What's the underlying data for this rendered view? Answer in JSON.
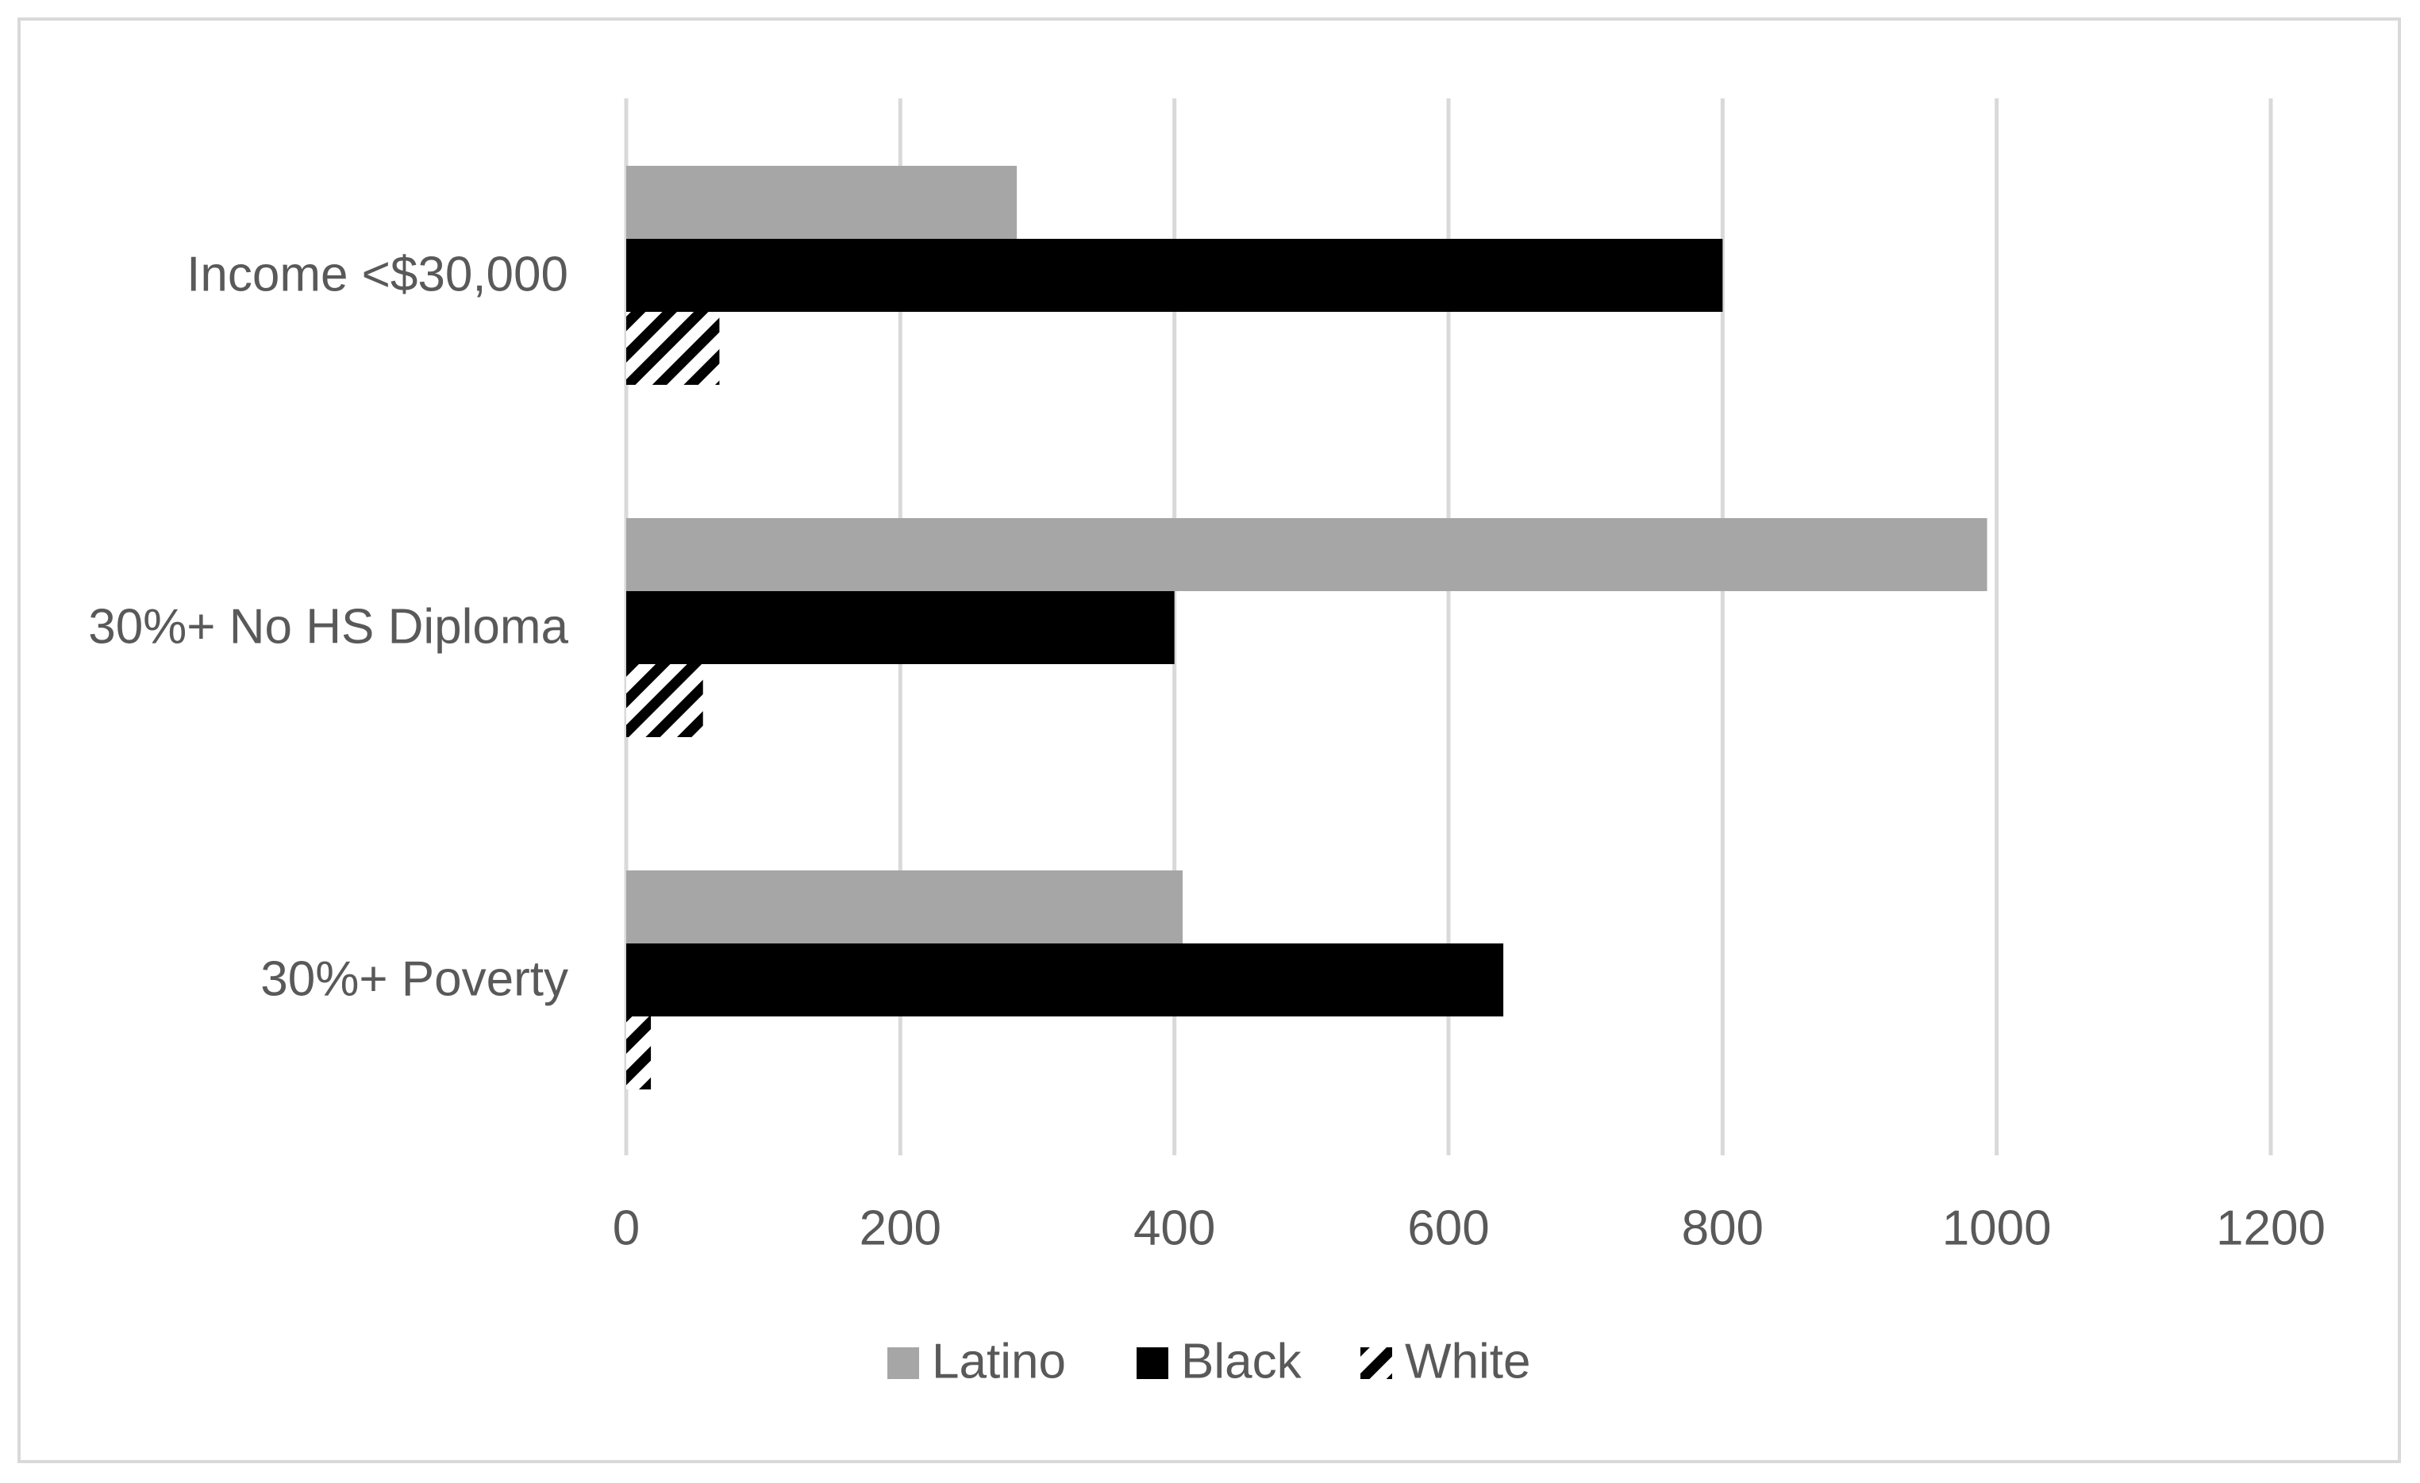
{
  "chart_data": {
    "type": "bar",
    "orientation": "horizontal",
    "categories": [
      "30%+ Poverty",
      "30%+ No HS Diploma",
      "Income <$30,000"
    ],
    "series": [
      {
        "name": "Latino",
        "values": [
          406,
          993,
          285
        ],
        "color": "#a6a6a6",
        "pattern": "solid"
      },
      {
        "name": "Black",
        "values": [
          640,
          400,
          800
        ],
        "color": "#000000",
        "pattern": "solid"
      },
      {
        "name": "White",
        "values": [
          18,
          56,
          68
        ],
        "color": "#000000",
        "pattern": "diagonal-stripes"
      }
    ],
    "xlim": [
      0,
      1200
    ],
    "xticks": [
      "0",
      "200",
      "400",
      "600",
      "800",
      "1000",
      "1200"
    ],
    "grid": "vertical",
    "legend": "bottom"
  }
}
